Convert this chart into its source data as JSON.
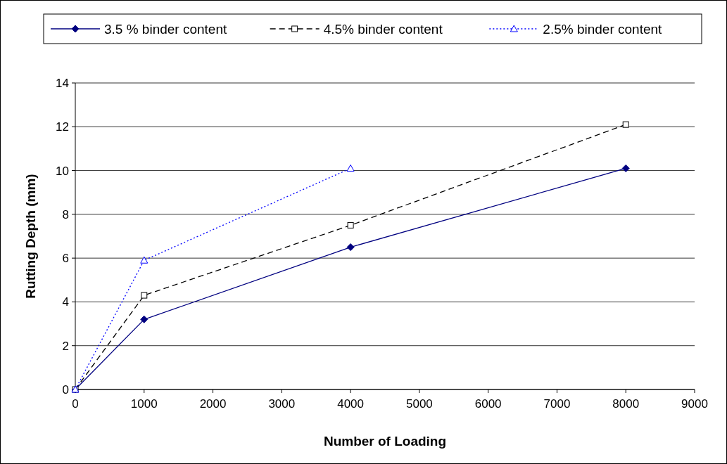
{
  "chart_data": {
    "type": "line",
    "xlabel": "Number of Loading",
    "ylabel": "Rutting Depth (mm)",
    "xlim": [
      0,
      9000
    ],
    "xticks": [
      0,
      1000,
      2000,
      3000,
      4000,
      5000,
      6000,
      7000,
      8000,
      9000
    ],
    "ylim": [
      0,
      14
    ],
    "yticks": [
      0,
      2,
      4,
      6,
      8,
      10,
      12,
      14
    ],
    "grid": "y",
    "legend": "top",
    "series": [
      {
        "name": "3.5 % binder content",
        "color": "#000080",
        "x": [
          0,
          1000,
          4000,
          8000
        ],
        "values": [
          0,
          3.2,
          6.5,
          10.1
        ],
        "marker": "diamond",
        "line_style": "solid"
      },
      {
        "name": "4.5% binder content",
        "color": "#000000",
        "x": [
          0,
          1000,
          4000,
          8000
        ],
        "values": [
          0,
          4.3,
          7.5,
          12.1
        ],
        "marker": "square",
        "line_style": "dashed"
      },
      {
        "name": "2.5% binder content",
        "color": "#0000ff",
        "x": [
          0,
          1000,
          4000
        ],
        "values": [
          0,
          5.9,
          10.1
        ],
        "marker": "triangle",
        "line_style": "dotted"
      }
    ]
  }
}
